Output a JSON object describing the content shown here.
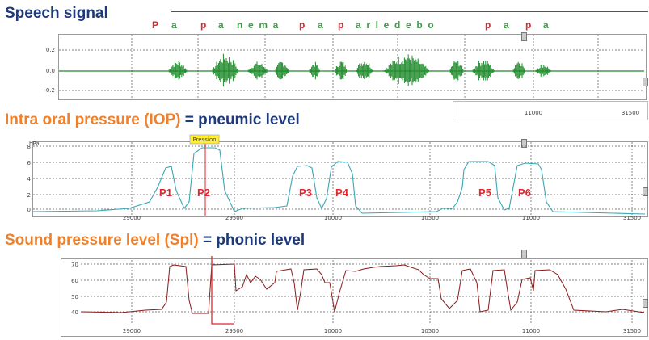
{
  "headings": {
    "speech": "Speech signal",
    "iop_part1": "Intra oral pressure (IOP)",
    "iop_part2": "= pneumic level",
    "spl_part1": "Sound pressure level (Spl)",
    "spl_part2": "= phonic level"
  },
  "syllables": [
    {
      "text": "P",
      "color": "red"
    },
    {
      "text": "a",
      "color": "green"
    },
    {
      "text": "p",
      "color": "red"
    },
    {
      "text": "a",
      "color": "green"
    },
    {
      "text": "n e m a",
      "color": "green"
    },
    {
      "text": "p",
      "color": "red"
    },
    {
      "text": "a",
      "color": "green"
    },
    {
      "text": "p",
      "color": "red"
    },
    {
      "text": "a r l e d e b o",
      "color": "green"
    },
    {
      "text": "p",
      "color": "red"
    },
    {
      "text": "a",
      "color": "green"
    },
    {
      "text": "p",
      "color": "red"
    },
    {
      "text": "a",
      "color": "green"
    }
  ],
  "colors": {
    "navy": "#1f3a7a",
    "orange": "#f0802a",
    "red": "#e0262e",
    "green": "#3aa043",
    "speech_wave": "#1e8a2a",
    "iop_trace": "#3aa6b4",
    "spl_trace": "#8a1a1a",
    "cursor": "#e0262e"
  },
  "speech_panel": {
    "y_ticks": [
      "0.2",
      "0.0",
      "-0.2"
    ],
    "x_ticks": [
      "11000",
      "31500"
    ]
  },
  "iop_panel": {
    "unit": "hPa",
    "cursor_label": "Pression",
    "y_ticks": [
      "8",
      "6",
      "4",
      "2",
      "0"
    ],
    "x_ticks": [
      "29000",
      "29500",
      "10000",
      "10500",
      "11000",
      "31500"
    ],
    "peaks": [
      "P1",
      "P2",
      "P3",
      "P4",
      "P5",
      "P6"
    ]
  },
  "spl_panel": {
    "y_ticks": [
      "70",
      "60",
      "50",
      "40"
    ],
    "x_ticks": [
      "29000",
      "29500",
      "10000",
      "10500",
      "11000",
      "31500"
    ]
  }
}
